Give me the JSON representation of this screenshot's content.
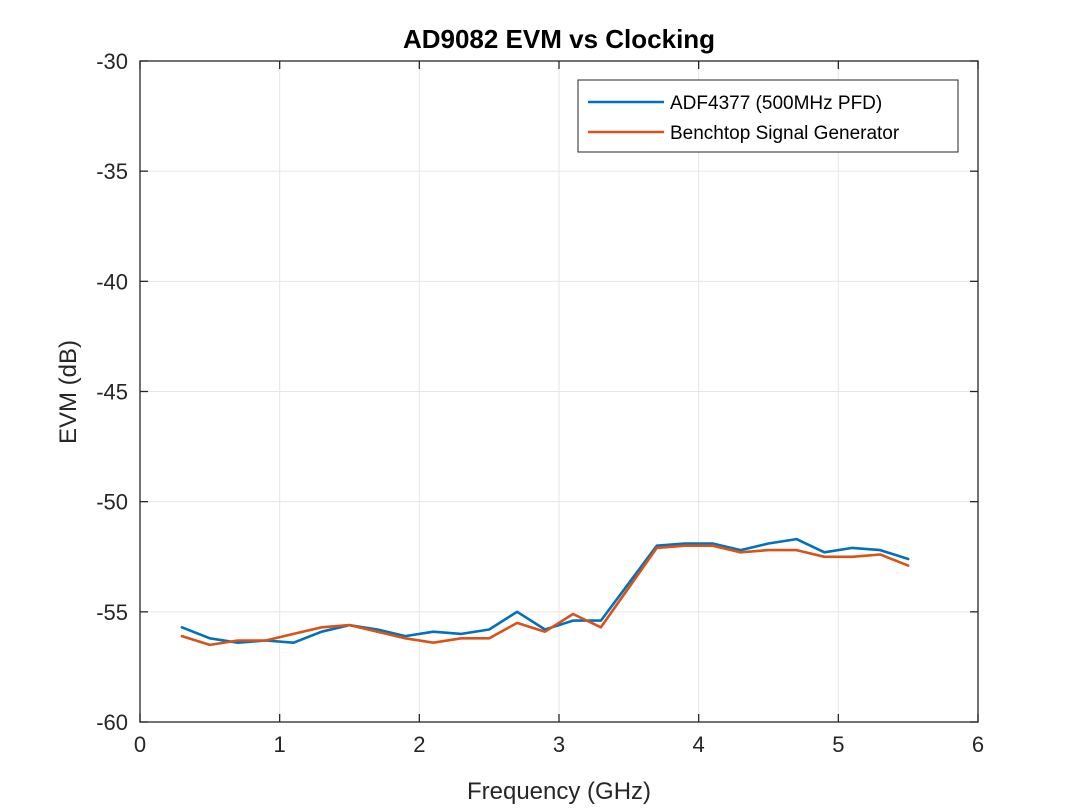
{
  "chart_data": {
    "type": "line",
    "title": "AD9082 EVM vs Clocking",
    "xlabel": "Frequency (GHz)",
    "ylabel": "EVM (dB)",
    "xlim": [
      0,
      6
    ],
    "ylim": [
      -60,
      -30
    ],
    "xticks": [
      "0",
      "1",
      "2",
      "3",
      "4",
      "5",
      "6"
    ],
    "yticks": [
      "-30",
      "-35",
      "-40",
      "-45",
      "-50",
      "-55",
      "-60"
    ],
    "grid": true,
    "legend_position": "top-right",
    "x": [
      0.3,
      0.5,
      0.7,
      0.9,
      1.1,
      1.3,
      1.5,
      1.7,
      1.9,
      2.1,
      2.3,
      2.5,
      2.7,
      2.9,
      3.1,
      3.3,
      3.7,
      3.9,
      4.1,
      4.3,
      4.5,
      4.7,
      4.9,
      5.1,
      5.3,
      5.5
    ],
    "series": [
      {
        "name": "ADF4377 (500MHz PFD)",
        "color": "#0072BD",
        "values": [
          -55.7,
          -56.2,
          -56.4,
          -56.3,
          -56.4,
          -55.9,
          -55.6,
          -55.8,
          -56.1,
          -55.9,
          -56.0,
          -55.8,
          -55.0,
          -55.8,
          -55.4,
          -55.4,
          -52.0,
          -51.9,
          -51.9,
          -52.2,
          -51.9,
          -51.7,
          -52.3,
          -52.1,
          -52.2,
          -52.6
        ]
      },
      {
        "name": "Benchtop Signal Generator",
        "color": "#D95319",
        "values": [
          -56.1,
          -56.5,
          -56.3,
          -56.3,
          -56.0,
          -55.7,
          -55.6,
          -55.9,
          -56.2,
          -56.4,
          -56.2,
          -56.2,
          -55.5,
          -55.9,
          -55.1,
          -55.7,
          -52.1,
          -52.0,
          -52.0,
          -52.3,
          -52.2,
          -52.2,
          -52.5,
          -52.5,
          -52.4,
          -52.9
        ]
      }
    ]
  }
}
